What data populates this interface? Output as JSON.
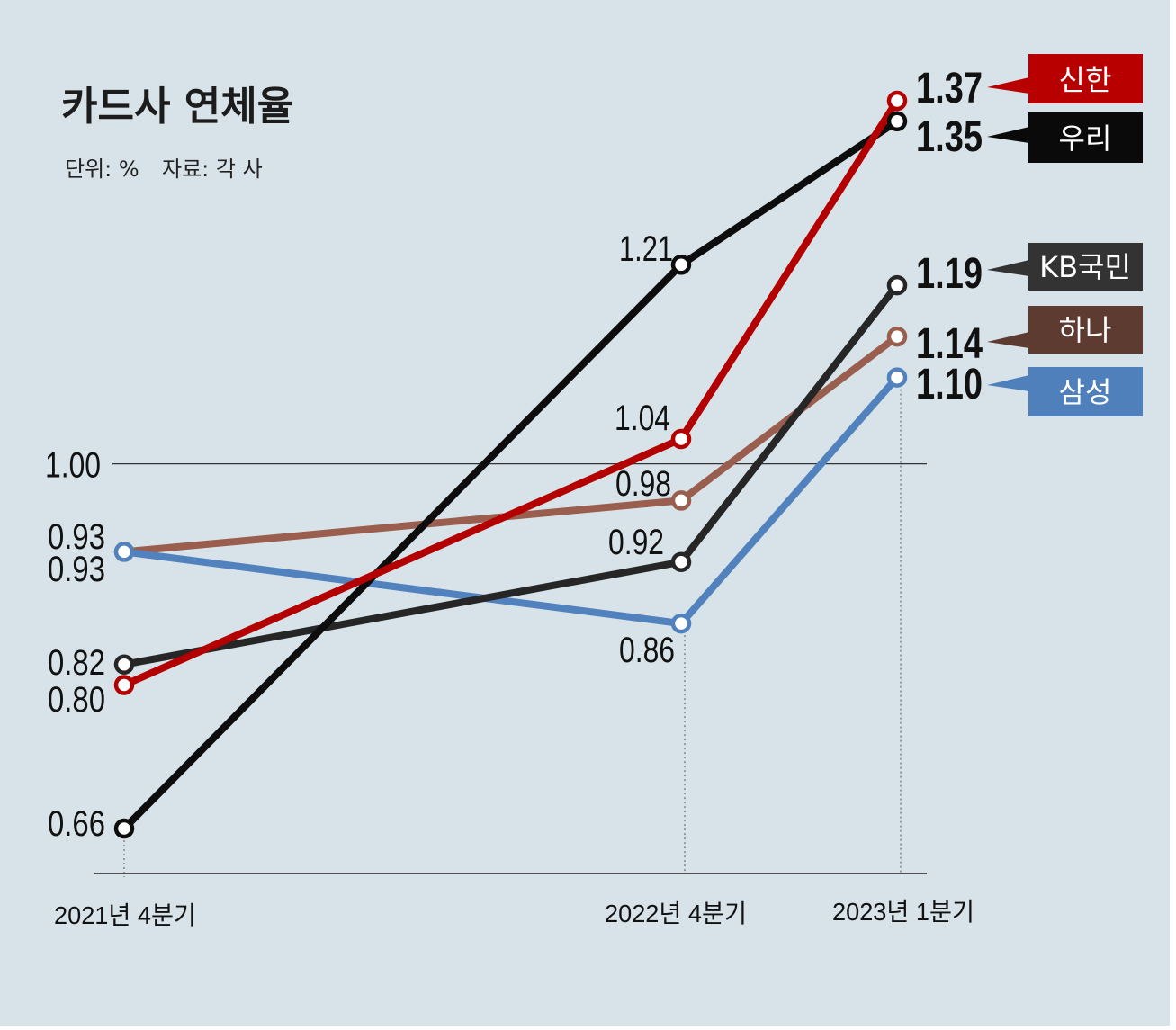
{
  "chart_data": {
    "type": "line",
    "title": "카드사 연체율",
    "unit_label": "단위: %",
    "source_label": "자료: 각 사",
    "categories": [
      "2021년 4분기",
      "2022년 4분기",
      "2023년 1분기"
    ],
    "ylim": [
      0.66,
      1.37
    ],
    "reference_line": {
      "value": 1.0,
      "label": "1.00"
    },
    "grid": false,
    "legend_position": "right",
    "series": [
      {
        "name": "신한",
        "values": [
          0.8,
          1.04,
          1.37
        ],
        "color": "#b30000",
        "legend_color": "#b80000"
      },
      {
        "name": "우리",
        "values": [
          0.66,
          1.21,
          1.35
        ],
        "color": "#0d0d0d",
        "legend_color": "#0a0a0a"
      },
      {
        "name": "KB국민",
        "values": [
          0.82,
          0.92,
          1.19
        ],
        "color": "#262626",
        "legend_color": "#333333"
      },
      {
        "name": "하나",
        "values": [
          0.93,
          0.98,
          1.14
        ],
        "color": "#9a5e4f",
        "legend_color": "#5e3b30"
      },
      {
        "name": "삼성",
        "values": [
          0.93,
          0.86,
          1.1
        ],
        "color": "#5282bd",
        "legend_color": "#4f80bb"
      }
    ]
  }
}
